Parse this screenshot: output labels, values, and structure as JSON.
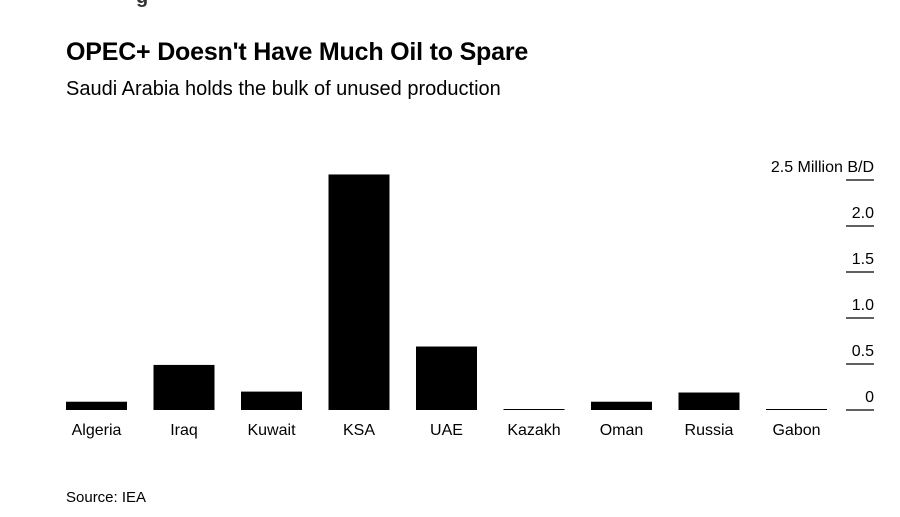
{
  "header": {
    "brand_fragment": "g",
    "title": "OPEC+ Doesn't Have Much Oil to Spare",
    "subtitle": "Saudi Arabia holds the bulk of unused production"
  },
  "footer": {
    "source": "Source: IEA"
  },
  "colors": {
    "bar": "#000000",
    "grid": "#000000",
    "text": "#000000"
  },
  "chart_data": {
    "type": "bar",
    "title": "OPEC+ Doesn't Have Much Oil to Spare",
    "subtitle": "Saudi Arabia holds the bulk of unused production",
    "categories": [
      "Algeria",
      "Iraq",
      "Kuwait",
      "KSA",
      "UAE",
      "Kazakh",
      "Oman",
      "Russia",
      "Gabon"
    ],
    "values": [
      0.09,
      0.49,
      0.2,
      2.56,
      0.69,
      0.01,
      0.09,
      0.19,
      0.01
    ],
    "ylim": [
      0,
      2.5
    ],
    "yticks": [
      {
        "value": 0,
        "label": "0"
      },
      {
        "value": 0.5,
        "label": "0.5"
      },
      {
        "value": 1.0,
        "label": "1.0"
      },
      {
        "value": 1.5,
        "label": "1.5"
      },
      {
        "value": 2.0,
        "label": "2.0"
      },
      {
        "value": 2.5,
        "label": "2.5 Million B/D"
      }
    ],
    "y_axis_position": "right",
    "grid": "short tick marks on right axis",
    "legend": "none",
    "source": "Source: IEA"
  }
}
